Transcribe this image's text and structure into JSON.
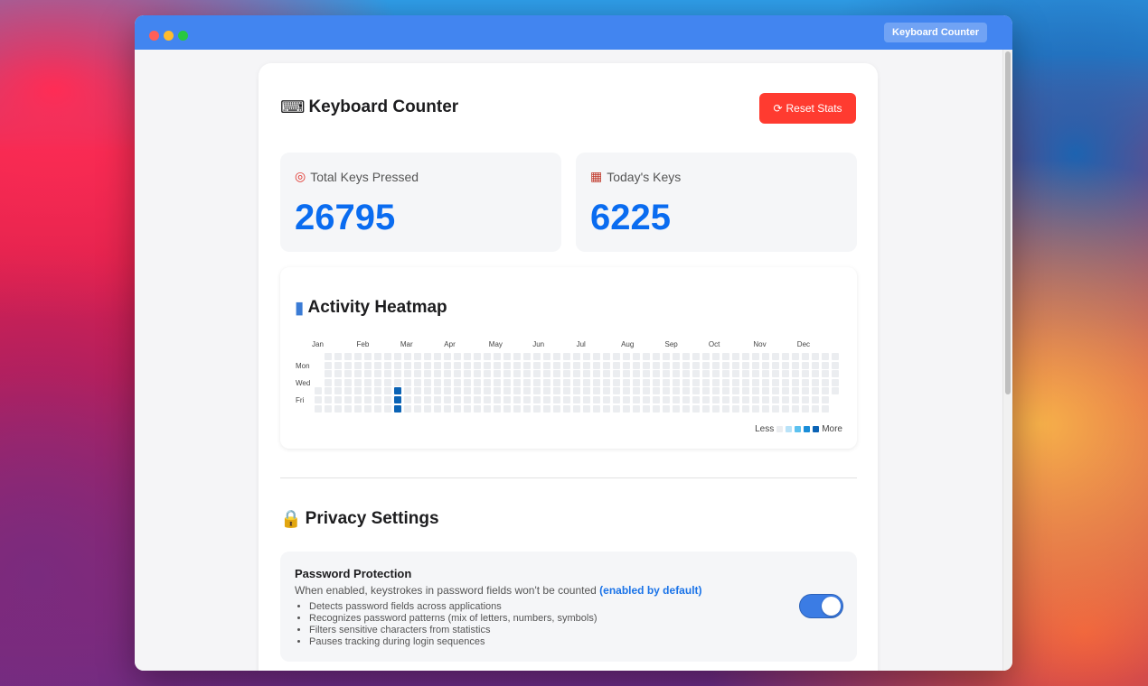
{
  "window": {
    "title": "Keyboard Counter"
  },
  "header": {
    "title": "Keyboard Counter",
    "title_icon": "keyboard-icon",
    "reset_label": "Reset Stats",
    "reset_icon": "refresh-icon"
  },
  "stats": {
    "total": {
      "label": "Total Keys Pressed",
      "icon": "target-icon",
      "value": "26795"
    },
    "today": {
      "label": "Today's Keys",
      "icon": "calendar-icon",
      "value": "6225"
    }
  },
  "heatmap": {
    "title": "Activity Heatmap",
    "icon": "bar-chart-icon",
    "months": [
      "Jan",
      "Feb",
      "Mar",
      "Apr",
      "May",
      "Jun",
      "Jul",
      "Aug",
      "Sep",
      "Oct",
      "Nov",
      "Dec"
    ],
    "day_labels": [
      "Mon",
      "Wed",
      "Fri"
    ],
    "legend": {
      "less": "Less",
      "more": "More"
    },
    "active_cells": [
      {
        "week": 8,
        "day": 4,
        "level": 4
      },
      {
        "week": 8,
        "day": 5,
        "level": 4
      },
      {
        "week": 8,
        "day": 6,
        "level": 4
      }
    ],
    "colors": [
      "#ebedf0",
      "#b8e2f8",
      "#5cc1ef",
      "#1a8dd8",
      "#0b63b5"
    ]
  },
  "privacy": {
    "title": "Privacy Settings",
    "icon": "lock-icon",
    "password": {
      "name": "Password Protection",
      "description": "When enabled, keystrokes in password fields won't be counted",
      "accent": "(enabled by default)",
      "enabled": true,
      "features": [
        "Detects password fields across applications",
        "Recognizes password patterns (mix of letters, numbers, symbols)",
        "Filters sensitive characters from statistics",
        "Pauses tracking during login sequences"
      ]
    }
  }
}
